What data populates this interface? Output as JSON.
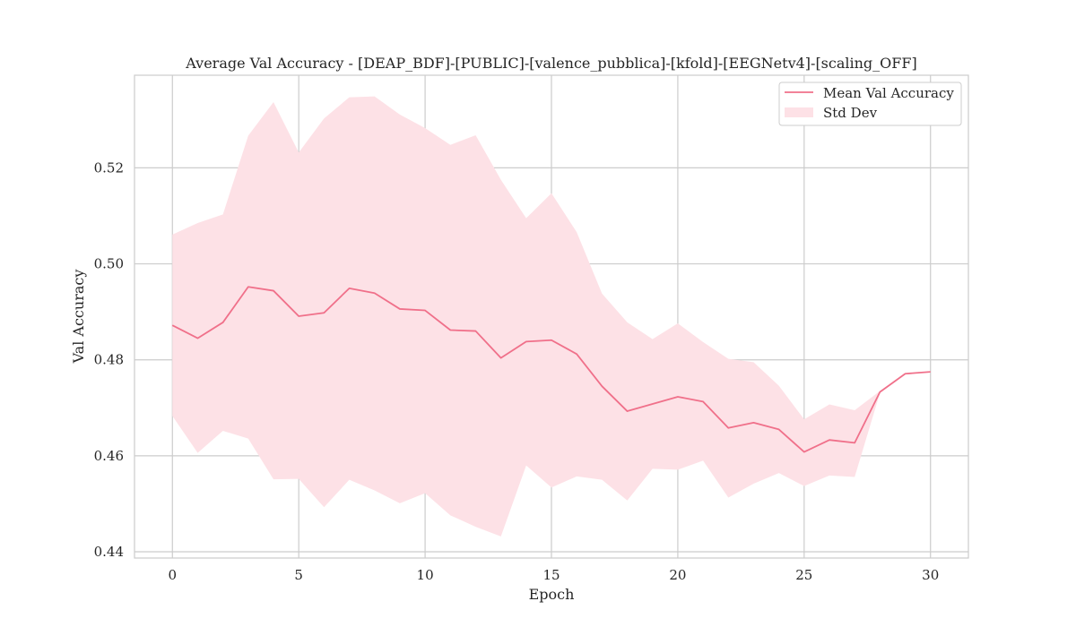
{
  "chart_data": {
    "type": "line",
    "title": "Average Val Accuracy - [DEAP_BDF]-[PUBLIC]-[valence_pubblica]-[kfold]-[EEGNetv4]-[scaling_OFF]",
    "xlabel": "Epoch",
    "ylabel": "Val Accuracy",
    "xlim": [
      -1.5,
      31.5
    ],
    "ylim": [
      0.4387,
      0.5393
    ],
    "xticks": [
      0,
      5,
      10,
      15,
      20,
      25,
      30
    ],
    "xtick_labels": [
      "0",
      "5",
      "10",
      "15",
      "20",
      "25",
      "30"
    ],
    "yticks": [
      0.44,
      0.46,
      0.48,
      0.5,
      0.52
    ],
    "ytick_labels": [
      "0.44",
      "0.46",
      "0.48",
      "0.50",
      "0.52"
    ],
    "grid": true,
    "legend": "top-right",
    "x": [
      0,
      1,
      2,
      3,
      4,
      5,
      6,
      7,
      8,
      9,
      10,
      11,
      12,
      13,
      14,
      15,
      16,
      17,
      18,
      19,
      20,
      21,
      22,
      23,
      24,
      25,
      26,
      27,
      28,
      29,
      30
    ],
    "series": [
      {
        "name": "Mean Val Accuracy",
        "color": "#f0708a",
        "values": [
          0.4872,
          0.4845,
          0.4878,
          0.4952,
          0.4944,
          0.4891,
          0.4898,
          0.4949,
          0.4939,
          0.4906,
          0.4903,
          0.4862,
          0.486,
          0.4804,
          0.4838,
          0.4841,
          0.4812,
          0.4745,
          0.4693,
          0.4708,
          0.4723,
          0.4713,
          0.4658,
          0.4669,
          0.4655,
          0.4608,
          0.4633,
          0.4627,
          0.4733,
          0.4771,
          0.4775
        ]
      }
    ],
    "band": {
      "name": "Std Dev",
      "color": "#fde1e6",
      "upper": [
        0.5061,
        0.5085,
        0.5103,
        0.5267,
        0.5337,
        0.5232,
        0.5303,
        0.5347,
        0.5349,
        0.5311,
        0.5283,
        0.5248,
        0.5268,
        0.5175,
        0.5095,
        0.5147,
        0.5066,
        0.4938,
        0.4878,
        0.4843,
        0.4876,
        0.4837,
        0.4802,
        0.4795,
        0.4746,
        0.4676,
        0.4707,
        0.4695,
        0.4735,
        0.4772,
        0.4776
      ],
      "lower": [
        0.4683,
        0.4606,
        0.4652,
        0.4636,
        0.4551,
        0.4552,
        0.4493,
        0.455,
        0.4528,
        0.4501,
        0.4522,
        0.4476,
        0.4452,
        0.4432,
        0.458,
        0.4534,
        0.4557,
        0.455,
        0.4507,
        0.4573,
        0.4571,
        0.459,
        0.4513,
        0.4542,
        0.4564,
        0.4537,
        0.4559,
        0.4556,
        0.4731,
        0.477,
        0.4774
      ]
    }
  }
}
